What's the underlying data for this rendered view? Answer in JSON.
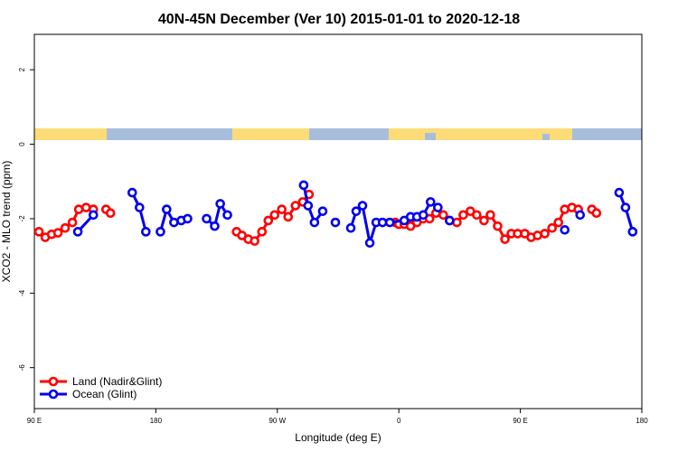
{
  "chart_data": {
    "type": "line",
    "title": "40N-45N December (Ver 10)   2015-01-01 to 2020-12-18",
    "xlabel": "Longitude (deg E)",
    "ylabel": "XCO2 - MLO trend (ppm)",
    "xlim": [
      90,
      540
    ],
    "ylim": [
      -7.1,
      2.95
    ],
    "xticks": [
      {
        "value": 90,
        "label": "90 E"
      },
      180,
      {
        "value": 270,
        "label": "90 W"
      },
      {
        "value": 360,
        "label": "0"
      },
      {
        "value": 450,
        "label": "90 E"
      },
      {
        "value": 540,
        "label": "180"
      }
    ],
    "yticks": [
      2,
      0,
      -2,
      -4,
      -6
    ],
    "legend": "bottom-left",
    "series": [
      {
        "name": "Land (Nadir&Glint)",
        "color": "#ff0000",
        "x": [
          93.4,
          98.1,
          102.8,
          107.5,
          112.8,
          118.2,
          122.9,
          128.3,
          133.7,
          138,
          143.1,
          146.4,
          190,
          239.8,
          243.8,
          248.5,
          253.2,
          258.6,
          263.3,
          268,
          273.3,
          278,
          283.4,
          288.8,
          293.5,
          325,
          357.3,
          360,
          364,
          368.7,
          373.4,
          378.1,
          382.8,
          387.5,
          392.9,
          397.6,
          403,
          407.7,
          413,
          417.7,
          423.1,
          427.8,
          433.2,
          438.6,
          443.3,
          448,
          453.3,
          458,
          462.7,
          468.1,
          473.5,
          478.2,
          482.9,
          488.2,
          492.9,
          498,
          503,
          506.4
        ],
        "values": [
          -2.35,
          -2.5,
          -2.42,
          -2.38,
          -2.25,
          -2.1,
          -1.75,
          -1.7,
          -1.75,
          null,
          -1.75,
          -1.85,
          null,
          -2.35,
          -2.45,
          -2.55,
          -2.6,
          -2.35,
          -2.05,
          -1.9,
          -1.75,
          -1.95,
          -1.65,
          -1.55,
          -1.35,
          null,
          -2.1,
          -2.15,
          -2.15,
          -2.2,
          -2.1,
          -2.0,
          -2.0,
          -1.85,
          -1.9,
          -2.05,
          -2.1,
          -1.9,
          -1.8,
          -1.9,
          -2.05,
          -1.9,
          -2.2,
          -2.55,
          -2.4,
          -2.4,
          -2.4,
          -2.5,
          -2.45,
          -2.4,
          -2.25,
          -2.1,
          -1.75,
          -1.7,
          -1.75,
          null,
          -1.75,
          -1.85
        ]
      },
      {
        "name": "Ocean (Glint)",
        "color": "#0000ee",
        "x": [
          122.2,
          133.7,
          150,
          162.5,
          167.9,
          172.6,
          178,
          183.4,
          188,
          193.4,
          198.8,
          203.5,
          210,
          217.6,
          223.6,
          227.7,
          233,
          260,
          289.5,
          292.8,
          297.5,
          303.6,
          308,
          313,
          318,
          324.4,
          328.4,
          333.1,
          338.5,
          343.2,
          347.9,
          353.3,
          364,
          368.7,
          373.4,
          378.1,
          383.5,
          388.9,
          393,
          397.6,
          440,
          482.9,
          488,
          494.3,
          510,
          523.2,
          527.9,
          533.2
        ],
        "values": [
          -2.35,
          -1.9,
          null,
          -1.3,
          -1.7,
          -2.35,
          null,
          -2.35,
          -1.75,
          -2.1,
          -2.05,
          -2.0,
          null,
          -2.0,
          -2.2,
          -1.6,
          -1.9,
          null,
          -1.1,
          -1.65,
          -2.1,
          -1.8,
          null,
          -2.1,
          null,
          -2.25,
          -1.8,
          -1.65,
          -2.65,
          -2.1,
          -2.1,
          -2.1,
          -2.05,
          -1.95,
          -1.95,
          -1.9,
          -1.55,
          -1.7,
          null,
          -2.05,
          null,
          -2.3,
          null,
          -1.9,
          null,
          -1.3,
          -1.7,
          -2.35
        ]
      }
    ]
  }
}
